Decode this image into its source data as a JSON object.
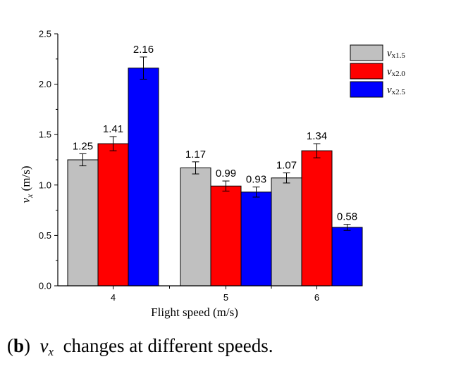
{
  "chart_data": {
    "type": "bar",
    "categories": [
      "4",
      "5",
      "6"
    ],
    "series": [
      {
        "name": "vx1.5",
        "symbol": "v",
        "sub": "x1.5",
        "color": "#c0c0c0",
        "values": [
          1.25,
          1.17,
          1.07
        ],
        "labels": [
          "1.25",
          "1.17",
          "1.07"
        ],
        "errors": [
          0.06,
          0.06,
          0.05
        ]
      },
      {
        "name": "vx2.0",
        "symbol": "v",
        "sub": "x2.0",
        "color": "#ff0000",
        "values": [
          1.41,
          0.99,
          1.34
        ],
        "labels": [
          "1.41",
          "0.99",
          "1.34"
        ],
        "errors": [
          0.07,
          0.05,
          0.07
        ]
      },
      {
        "name": "vx2.5",
        "symbol": "v",
        "sub": "x2.5",
        "color": "#0000ff",
        "values": [
          2.16,
          0.93,
          0.58
        ],
        "labels": [
          "2.16",
          "0.93",
          "0.58"
        ],
        "errors": [
          0.11,
          0.05,
          0.03
        ]
      }
    ],
    "xlabel": "Flight speed (m/s)",
    "ylabel_symbol": "v",
    "ylabel_sub": "x",
    "ylabel_unit": " (m/s)",
    "ylim": [
      0,
      2.5
    ],
    "yticks": [
      "0.0",
      "0.5",
      "1.0",
      "1.5",
      "2.0",
      "2.5"
    ],
    "legend_position": "top-right"
  },
  "caption": {
    "label_open": "(",
    "label_letter": "b",
    "label_close": ")",
    "symbol": "v",
    "sub": "x",
    "text": "changes at different speeds."
  }
}
